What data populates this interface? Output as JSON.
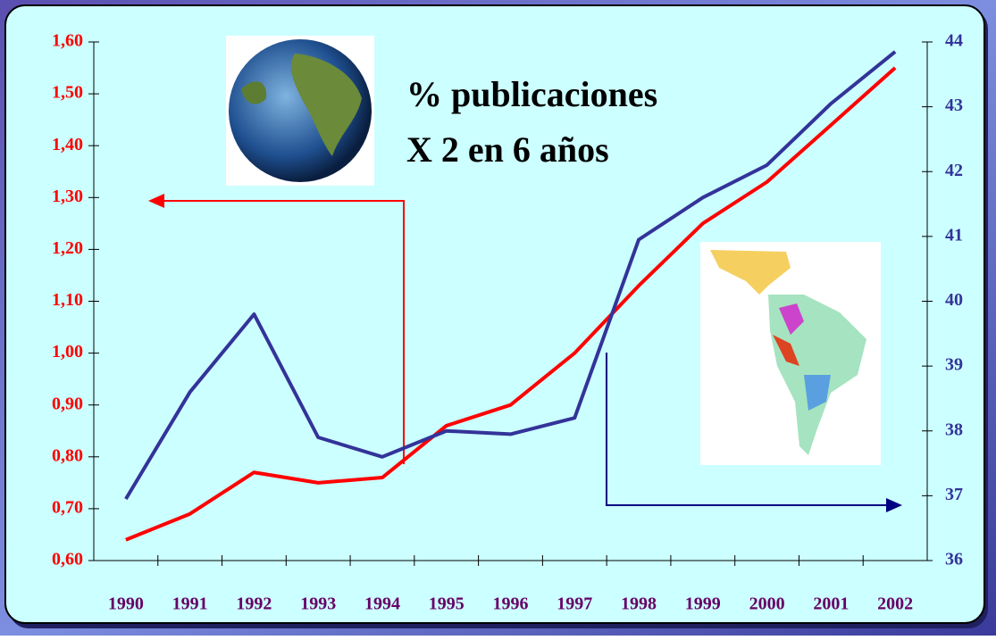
{
  "chart_data": {
    "type": "line",
    "annotations": [
      "% publicaciones",
      "X 2 en 6 años"
    ],
    "categories": [
      "1990",
      "1991",
      "1992",
      "1993",
      "1994",
      "1995",
      "1996",
      "1997",
      "1998",
      "1999",
      "2000",
      "2001",
      "2002"
    ],
    "series": [
      {
        "color": "#ff0000",
        "values": [
          0.64,
          0.69,
          0.77,
          0.75,
          0.76,
          0.86,
          0.9,
          1.0,
          1.13,
          1.25,
          1.33,
          1.44,
          1.55
        ]
      },
      {
        "color": "#333399",
        "axis": "y2",
        "values": [
          36.95,
          38.6,
          39.8,
          37.9,
          37.6,
          38.0,
          37.95,
          38.2,
          40.95,
          41.6,
          42.1,
          43.05,
          43.85
        ]
      }
    ],
    "ylim": [
      0.6,
      1.6
    ],
    "yticks": [
      {
        "value": 0.6,
        "label": "0,60"
      },
      {
        "value": 0.7,
        "label": "0,70"
      },
      {
        "value": 0.8,
        "label": "0,80"
      },
      {
        "value": 0.9,
        "label": "0,90"
      },
      {
        "value": 1.0,
        "label": "1,00"
      },
      {
        "value": 1.1,
        "label": "1,10"
      },
      {
        "value": 1.2,
        "label": "1,20"
      },
      {
        "value": 1.3,
        "label": "1,30"
      },
      {
        "value": 1.4,
        "label": "1,40"
      },
      {
        "value": 1.5,
        "label": "1,50"
      },
      {
        "value": 1.6,
        "label": "1,60"
      }
    ],
    "y2lim": [
      36,
      44
    ],
    "y2ticks": [
      36,
      37,
      38,
      39,
      40,
      41,
      42,
      43,
      44
    ],
    "ytick_color": "#ff0000",
    "y2tick_color": "#333399",
    "xtick_color": "#660066"
  }
}
